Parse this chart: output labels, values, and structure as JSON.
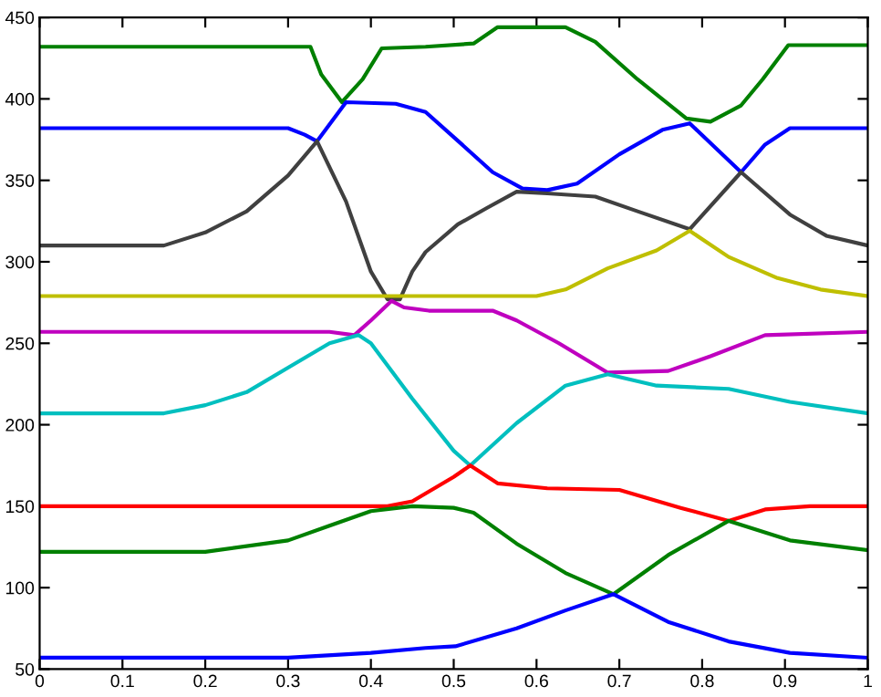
{
  "chart_data": {
    "type": "line",
    "xlim": [
      0,
      1
    ],
    "ylim": [
      50,
      450
    ],
    "xticks": [
      0,
      0.1,
      0.2,
      0.3,
      0.4,
      0.5,
      0.6,
      0.7,
      0.8,
      0.9,
      1
    ],
    "yticks": [
      50,
      100,
      150,
      200,
      250,
      300,
      350,
      400,
      450
    ],
    "grid": false,
    "legend": false,
    "marker": "none",
    "line_style": "solid",
    "series": [
      {
        "color": "#008000",
        "x": [
          0,
          0.327,
          0.34,
          0.365,
          0.39,
          0.413,
          0.466,
          0.524,
          0.553,
          0.635,
          0.671,
          0.722,
          0.781,
          0.81,
          0.847,
          0.873,
          0.904,
          1
        ],
        "values": [
          432,
          432,
          415,
          398,
          412,
          431,
          432,
          434,
          444,
          444,
          435,
          412,
          388,
          386,
          396,
          412,
          433,
          433
        ]
      },
      {
        "color": "#0000ff",
        "x": [
          0,
          0.3,
          0.32,
          0.335,
          0.37,
          0.43,
          0.466,
          0.51,
          0.547,
          0.583,
          0.613,
          0.649,
          0.7,
          0.752,
          0.785,
          0.847,
          0.876,
          0.906,
          1
        ],
        "values": [
          382,
          382,
          378,
          374,
          398,
          397,
          392,
          372,
          355,
          345,
          344,
          348,
          366,
          381,
          385,
          355,
          372,
          382,
          382
        ]
      },
      {
        "color": "#404040",
        "x": [
          0,
          0.15,
          0.2,
          0.25,
          0.3,
          0.335,
          0.37,
          0.4,
          0.42,
          0.435,
          0.45,
          0.466,
          0.505,
          0.54,
          0.576,
          0.613,
          0.671,
          0.722,
          0.785,
          0.847,
          0.906,
          0.95,
          1
        ],
        "values": [
          310,
          310,
          318,
          331,
          353,
          374,
          337,
          294,
          277,
          277,
          294,
          306,
          323,
          333,
          343,
          342,
          340,
          331,
          320,
          355,
          329,
          316,
          310
        ]
      },
      {
        "color": "#bfbf00",
        "x": [
          0,
          0.6,
          0.635,
          0.686,
          0.745,
          0.785,
          0.832,
          0.891,
          0.943,
          1
        ],
        "values": [
          279,
          279,
          283,
          296,
          307,
          319,
          303,
          290,
          283,
          279
        ]
      },
      {
        "color": "#bf00bf",
        "x": [
          0,
          0.35,
          0.38,
          0.4,
          0.425,
          0.44,
          0.47,
          0.547,
          0.576,
          0.627,
          0.686,
          0.759,
          0.81,
          0.876,
          1
        ],
        "values": [
          257,
          257,
          255,
          264,
          276,
          272,
          270,
          270,
          264,
          250,
          232,
          233,
          242,
          255,
          257
        ]
      },
      {
        "color": "#00bfbf",
        "x": [
          0,
          0.15,
          0.2,
          0.25,
          0.3,
          0.35,
          0.385,
          0.4,
          0.45,
          0.5,
          0.52,
          0.576,
          0.635,
          0.686,
          0.745,
          0.832,
          0.906,
          1
        ],
        "values": [
          207,
          207,
          212,
          220,
          235,
          250,
          255,
          250,
          216,
          184,
          175,
          201,
          224,
          231,
          224,
          222,
          214,
          207
        ]
      },
      {
        "color": "#ff0000",
        "x": [
          0,
          0.42,
          0.45,
          0.5,
          0.52,
          0.553,
          0.613,
          0.7,
          0.774,
          0.832,
          0.876,
          0.93,
          1
        ],
        "values": [
          150,
          150,
          153,
          168,
          175,
          164,
          161,
          160,
          149,
          141,
          148,
          150,
          150
        ]
      },
      {
        "color": "#008000",
        "x": [
          0,
          0.2,
          0.3,
          0.35,
          0.4,
          0.45,
          0.5,
          0.524,
          0.576,
          0.635,
          0.693,
          0.759,
          0.832,
          0.906,
          1
        ],
        "values": [
          122,
          122,
          129,
          138,
          147,
          150,
          149,
          146,
          127,
          109,
          96,
          120,
          141,
          129,
          123
        ]
      },
      {
        "color": "#0000ff",
        "x": [
          0,
          0.3,
          0.4,
          0.466,
          0.502,
          0.576,
          0.635,
          0.693,
          0.759,
          0.832,
          0.906,
          1
        ],
        "values": [
          57,
          57,
          60,
          63,
          64,
          75,
          86,
          96,
          79,
          67,
          60,
          57
        ]
      }
    ]
  }
}
